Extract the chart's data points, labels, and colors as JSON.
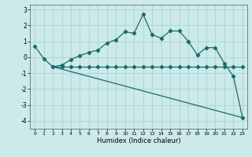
{
  "xlabel": "Humidex (Indice chaleur)",
  "xlim": [
    -0.5,
    23.5
  ],
  "ylim": [
    -4.5,
    3.3
  ],
  "yticks": [
    -4,
    -3,
    -2,
    -1,
    0,
    1,
    2,
    3
  ],
  "xticks": [
    0,
    1,
    2,
    3,
    4,
    5,
    6,
    7,
    8,
    9,
    10,
    11,
    12,
    13,
    14,
    15,
    16,
    17,
    18,
    19,
    20,
    21,
    22,
    23
  ],
  "bg_color": "#cceaea",
  "line_color": "#1a6b6b",
  "grid_color": "#b0d8d8",
  "series_main": {
    "x": [
      0,
      1,
      2,
      3,
      4,
      5,
      6,
      7,
      8,
      9,
      10,
      11,
      12,
      13,
      14,
      15,
      16,
      17,
      18,
      19,
      20,
      21,
      22,
      23
    ],
    "y": [
      0.7,
      -0.1,
      -0.6,
      -0.5,
      -0.15,
      0.1,
      0.3,
      0.45,
      0.9,
      1.1,
      1.6,
      1.5,
      2.7,
      1.4,
      1.2,
      1.65,
      1.65,
      1.0,
      0.15,
      0.6,
      0.6,
      -0.4,
      -1.2,
      -3.8
    ]
  },
  "series_flat": {
    "x": [
      2,
      3,
      4,
      5,
      6,
      7,
      8,
      9,
      10,
      11,
      12,
      13,
      14,
      15,
      16,
      17,
      18,
      19,
      20,
      21,
      22,
      23
    ],
    "y": [
      -0.6,
      -0.6,
      -0.6,
      -0.6,
      -0.6,
      -0.6,
      -0.6,
      -0.6,
      -0.6,
      -0.6,
      -0.6,
      -0.6,
      -0.6,
      -0.6,
      -0.6,
      -0.6,
      -0.6,
      -0.6,
      -0.6,
      -0.6,
      -0.6,
      -0.6
    ]
  },
  "series_diag": {
    "x": [
      2,
      23
    ],
    "y": [
      -0.6,
      -3.8
    ]
  }
}
